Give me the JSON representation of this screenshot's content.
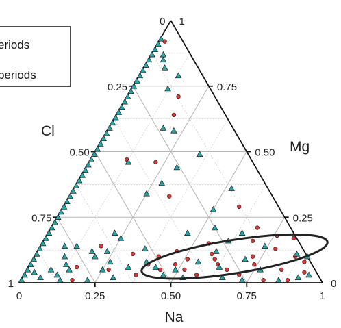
{
  "chart_data": {
    "type": "scatter",
    "subtype": "ternary",
    "title": "",
    "axes": {
      "bottom": {
        "label": "Na",
        "ticks": [
          "0",
          "0.25",
          "0.50",
          "0.75",
          "1"
        ]
      },
      "right": {
        "label": "Mg",
        "ticks": [
          "0",
          "0.25",
          "0.50",
          "0.75",
          "1"
        ]
      },
      "left": {
        "label": "Cl",
        "ticks": [
          "0",
          "0.25",
          "0.50",
          "0.75",
          "1"
        ]
      }
    },
    "grid": true,
    "legend": {
      "placement": "top-left",
      "entries": [
        {
          "label": "eriods",
          "marker": "square",
          "color": "#ffffff"
        },
        {
          "label": "periods",
          "marker": "square",
          "color": "#ffffff"
        }
      ]
    },
    "colors": {
      "circle": "#d63a3a",
      "triangle": "#2aa6a8",
      "ellipse": "#222222",
      "frame": "#111111"
    },
    "series": [
      {
        "marker": "circle",
        "color": "#d63a3a",
        "points": [
          {
            "na": 0.02,
            "mg": 0.92
          },
          {
            "na": 0.17,
            "mg": 0.71
          },
          {
            "na": 0.19,
            "mg": 0.64
          },
          {
            "na": 0.12,
            "mg": 0.47
          },
          {
            "na": 0.22,
            "mg": 0.46
          },
          {
            "na": 0.33,
            "mg": 0.33
          },
          {
            "na": 0.58,
            "mg": 0.29
          },
          {
            "na": 0.68,
            "mg": 0.21
          },
          {
            "na": 0.82,
            "mg": 0.17
          },
          {
            "na": 0.69,
            "mg": 0.16
          },
          {
            "na": 0.78,
            "mg": 0.13
          },
          {
            "na": 0.86,
            "mg": 0.1
          },
          {
            "na": 0.72,
            "mg": 0.1
          },
          {
            "na": 0.58,
            "mg": 0.11
          },
          {
            "na": 0.41,
            "mg": 0.1
          },
          {
            "na": 0.32,
            "mg": 0.11
          },
          {
            "na": 0.48,
            "mg": 0.07
          },
          {
            "na": 0.62,
            "mg": 0.07
          },
          {
            "na": 0.74,
            "mg": 0.07
          },
          {
            "na": 0.44,
            "mg": 0.05
          },
          {
            "na": 0.52,
            "mg": 0.05
          },
          {
            "na": 0.66,
            "mg": 0.05
          },
          {
            "na": 0.37,
            "mg": 0.03
          },
          {
            "na": 0.57,
            "mg": 0.03
          },
          {
            "na": 0.71,
            "mg": 0.03
          },
          {
            "na": 0.84,
            "mg": 0.05
          },
          {
            "na": 0.92,
            "mg": 0.04
          },
          {
            "na": 0.88,
            "mg": 0.01
          },
          {
            "na": 0.8,
            "mg": 0.01
          },
          {
            "na": 0.2,
            "mg": 0.14
          },
          {
            "na": 0.16,
            "mg": 0.06
          },
          {
            "na": 0.17,
            "mg": 0.01
          },
          {
            "na": 0.27,
            "mg": 0.05
          },
          {
            "na": 0.55,
            "mg": 0.15
          },
          {
            "na": 0.46,
            "mg": 0.12
          },
          {
            "na": 0.51,
            "mg": 0.09
          },
          {
            "na": 0.6,
            "mg": 0.09
          },
          {
            "na": 0.39,
            "mg": 0.07
          },
          {
            "na": 0.76,
            "mg": 0.18
          },
          {
            "na": 0.9,
            "mg": 0.08
          }
        ]
      },
      {
        "marker": "triangle",
        "color": "#2aa6a8",
        "points": [
          {
            "na": 0.04,
            "mg": 0.87
          },
          {
            "na": 0.05,
            "mg": 0.85
          },
          {
            "na": 0.07,
            "mg": 0.82
          },
          {
            "na": 0.13,
            "mg": 0.79
          },
          {
            "na": 0.12,
            "mg": 0.74
          },
          {
            "na": 0.22,
            "mg": 0.58
          },
          {
            "na": 0.18,
            "mg": 0.59
          },
          {
            "na": 0.13,
            "mg": 0.46
          },
          {
            "na": 0.35,
            "mg": 0.49
          },
          {
            "na": 0.3,
            "mg": 0.44
          },
          {
            "na": 0.25,
            "mg": 0.34
          },
          {
            "na": 0.28,
            "mg": 0.38
          },
          {
            "na": 0.52,
            "mg": 0.36
          },
          {
            "na": 0.5,
            "mg": 0.28
          },
          {
            "na": 0.54,
            "mg": 0.21
          },
          {
            "na": 0.46,
            "mg": 0.19
          },
          {
            "na": 0.61,
            "mg": 0.16
          },
          {
            "na": 0.64,
            "mg": 0.19
          },
          {
            "na": 0.7,
            "mg": 0.09
          },
          {
            "na": 0.74,
            "mg": 0.14
          },
          {
            "na": 0.77,
            "mg": 0.05
          },
          {
            "na": 0.35,
            "mg": 0.13
          },
          {
            "na": 0.38,
            "mg": 0.08
          },
          {
            "na": 0.42,
            "mg": 0.06
          },
          {
            "na": 0.49,
            "mg": 0.05
          },
          {
            "na": 0.55,
            "mg": 0.08
          },
          {
            "na": 0.46,
            "mg": 0.03
          },
          {
            "na": 0.53,
            "mg": 0.02
          },
          {
            "na": 0.33,
            "mg": 0.06
          },
          {
            "na": 0.3,
            "mg": 0.02
          },
          {
            "na": 0.22,
            "mg": 0.19
          },
          {
            "na": 0.25,
            "mg": 0.17
          },
          {
            "na": 0.23,
            "mg": 0.12
          },
          {
            "na": 0.2,
            "mg": 0.1
          },
          {
            "na": 0.18,
            "mg": 0.12
          },
          {
            "na": 0.12,
            "mg": 0.14
          },
          {
            "na": 0.1,
            "mg": 0.1
          },
          {
            "na": 0.12,
            "mg": 0.07
          },
          {
            "na": 0.08,
            "mg": 0.05
          },
          {
            "na": 0.11,
            "mg": 0.03
          },
          {
            "na": 0.13,
            "mg": 0.01
          },
          {
            "na": 0.03,
            "mg": 0.04
          },
          {
            "na": 0.06,
            "mg": 0.02
          },
          {
            "na": 0.22,
            "mg": 0.01
          },
          {
            "na": 0.25,
            "mg": 0.05
          },
          {
            "na": 0.08,
            "mg": 0.14
          },
          {
            "na": 0.14,
            "mg": 0.05
          },
          {
            "na": 0.26,
            "mg": 0.08
          },
          {
            "na": 0.66,
            "mg": 0.02
          },
          {
            "na": 0.73,
            "mg": 0.01
          },
          {
            "na": 0.85,
            "mg": 0.01
          },
          {
            "na": 0.91,
            "mg": 0.02
          },
          {
            "na": 0.94,
            "mg": 0.03
          },
          {
            "na": 0.9,
            "mg": 0.1
          },
          {
            "na": 0.86,
            "mg": 0.11
          },
          {
            "na": 0.59,
            "mg": 0.12
          },
          {
            "na": 0.63,
            "mg": 0.06
          }
        ]
      }
    ],
    "left_edge_cluster": {
      "mg_from": 0.01,
      "mg_to": 0.93,
      "step": 0.02
    },
    "ellipse": {
      "center": {
        "na": 0.66,
        "mg": 0.1
      },
      "semi_major": 0.31,
      "semi_minor": 0.055,
      "tilt_deg": -9
    }
  }
}
